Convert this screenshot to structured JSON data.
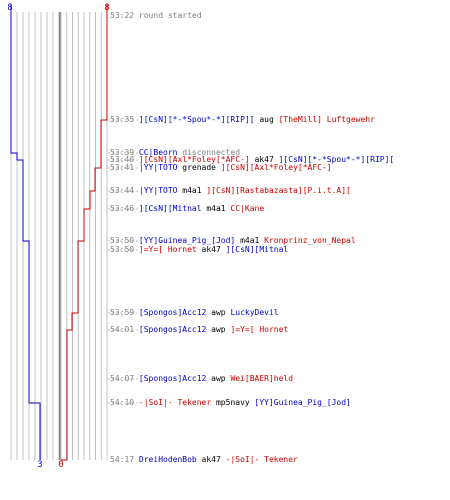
{
  "colors": {
    "blue": "#0000cc",
    "red": "#cc0000",
    "gray": "#808080",
    "black": "#000000",
    "grid": "#c0c0c0",
    "center": "#808080"
  },
  "score": {
    "blue_start": "8",
    "red_start": "8",
    "blue_end": "3",
    "red_end": "0"
  },
  "chart_data": {
    "type": "line",
    "series": [
      {
        "team": "blue",
        "values": [
          [
            "53:22",
            8
          ],
          [
            "53:39",
            7
          ],
          [
            "53:40",
            6
          ],
          [
            "53:44",
            5
          ],
          [
            "53:50",
            4
          ],
          [
            "53:59",
            4
          ],
          [
            "54:07",
            4
          ],
          [
            "54:10",
            3
          ],
          [
            "54:17",
            3
          ]
        ]
      },
      {
        "team": "red",
        "values": [
          [
            "53:22",
            8
          ],
          [
            "53:35",
            7
          ],
          [
            "53:41",
            6
          ],
          [
            "53:44",
            5
          ],
          [
            "53:46",
            4
          ],
          [
            "53:50",
            3
          ],
          [
            "53:59",
            2
          ],
          [
            "54:01",
            1
          ],
          [
            "54:17",
            0
          ]
        ]
      }
    ],
    "ylim": [
      0,
      8
    ]
  },
  "events": [
    {
      "time": "53:22",
      "parts": [
        {
          "t": "round started",
          "c": "gray"
        }
      ]
    },
    {
      "time": "53:35",
      "parts": [
        {
          "t": "][CsN][*-*Spou*-*][RIP][",
          "c": "blue"
        },
        {
          "t": " aug ",
          "c": "black"
        },
        {
          "t": "[TheMill] Luftgewehr",
          "c": "red"
        }
      ]
    },
    {
      "time": "53:39",
      "parts": [
        {
          "t": "CC|Beorn",
          "c": "blue"
        },
        {
          "t": " disconnected",
          "c": "gray"
        }
      ]
    },
    {
      "time": "53:40",
      "parts": [
        {
          "t": "][CsN][Axl*Foley[*AFC-]",
          "c": "red"
        },
        {
          "t": " ak47 ",
          "c": "black"
        },
        {
          "t": "][CsN][*-*Spou*-*][RIP][",
          "c": "blue"
        }
      ]
    },
    {
      "time": "53:41",
      "parts": [
        {
          "t": "|YY|TOTO",
          "c": "blue"
        },
        {
          "t": " grenade ",
          "c": "black"
        },
        {
          "t": "][CsN][Axl*Foley[*AFC-]",
          "c": "red"
        }
      ]
    },
    {
      "time": "53:44",
      "parts": [
        {
          "t": "|YY|TOTO",
          "c": "blue"
        },
        {
          "t": " m4a1 ",
          "c": "black"
        },
        {
          "t": "][CsN][Rastabazasta][P.i.t.A][",
          "c": "red"
        }
      ]
    },
    {
      "time": "53:46",
      "parts": [
        {
          "t": "][CsN][Mitnal",
          "c": "blue"
        },
        {
          "t": " m4a1 ",
          "c": "black"
        },
        {
          "t": "CC|Kane",
          "c": "red"
        }
      ]
    },
    {
      "time": "53:50",
      "parts": [
        {
          "t": "[YY]Guinea_Pig_[Jod]",
          "c": "blue"
        },
        {
          "t": " m4a1 ",
          "c": "black"
        },
        {
          "t": "Kronprinz_von_Nepal",
          "c": "red"
        }
      ]
    },
    {
      "time": "53:50",
      "parts": [
        {
          "t": "]=Y=[ Hornet",
          "c": "red"
        },
        {
          "t": " ak47 ",
          "c": "black"
        },
        {
          "t": "][CsN][Mitnal",
          "c": "blue"
        }
      ]
    },
    {
      "time": "53:59",
      "parts": [
        {
          "t": "[Spongos]Acc12",
          "c": "blue"
        },
        {
          "t": " awp ",
          "c": "black"
        },
        {
          "t": "LuckyDevil",
          "c": "blue"
        }
      ]
    },
    {
      "time": "54:01",
      "parts": [
        {
          "t": "[Spongos]Acc12",
          "c": "blue"
        },
        {
          "t": " awp ",
          "c": "black"
        },
        {
          "t": "]=Y=[ Hornet",
          "c": "red"
        }
      ]
    },
    {
      "time": "54:07",
      "parts": [
        {
          "t": "[Spongos]Acc12",
          "c": "blue"
        },
        {
          "t": " awp ",
          "c": "black"
        },
        {
          "t": "Wei[BAER]held",
          "c": "red"
        }
      ]
    },
    {
      "time": "54:10",
      "parts": [
        {
          "t": "-|SoI|- Tekener",
          "c": "red"
        },
        {
          "t": " mp5navy ",
          "c": "black"
        },
        {
          "t": "[YY]Guinea_Pig_[Jod]",
          "c": "blue"
        }
      ]
    },
    {
      "time": "54:17",
      "parts": [
        {
          "t": "DreiHodenBob",
          "c": "blue"
        },
        {
          "t": " ak47 ",
          "c": "black"
        },
        {
          "t": "-|SoI|- Tekener",
          "c": "red"
        }
      ]
    }
  ]
}
